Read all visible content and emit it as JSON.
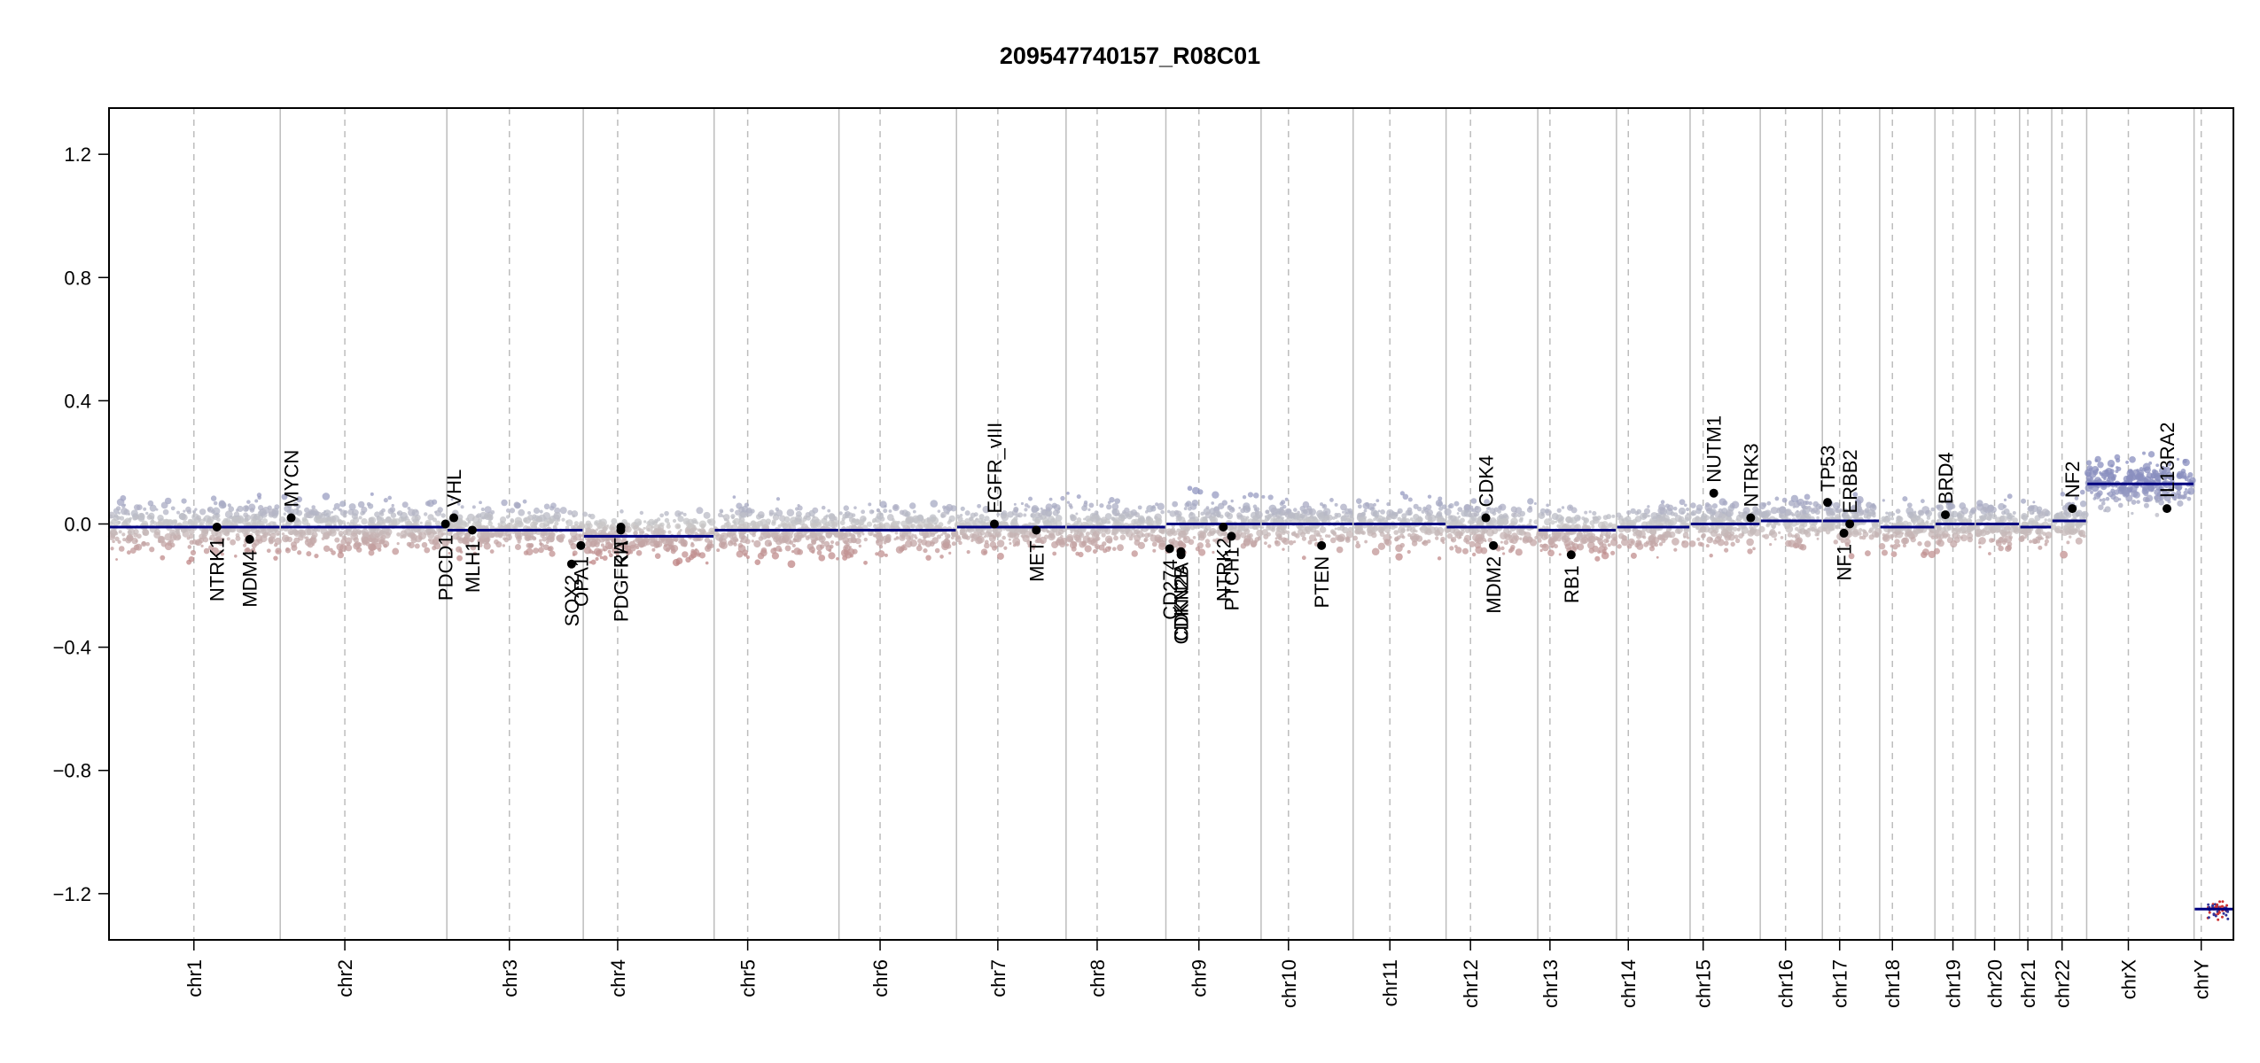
{
  "chart_data": {
    "type": "scatter",
    "title": "209547740157_R08C01",
    "xlabel": "",
    "ylabel": "",
    "ylim": [
      -1.35,
      1.35
    ],
    "y_ticks": [
      -1.2,
      -0.8,
      -0.4,
      0.0,
      0.4,
      0.8,
      1.2
    ],
    "y_tick_labels": [
      "−1.2",
      "−0.8",
      "−0.4",
      "0.0",
      "0.4",
      "0.8",
      "1.2"
    ],
    "grid": false,
    "colors": {
      "gain": "#8a8fbf",
      "loss": "#bf8585",
      "neutral": "#c8c8c8",
      "segment": "#000080",
      "frame": "#000000",
      "chr_line": "#bdbdbd"
    },
    "chromosomes": [
      {
        "name": "chr1",
        "start": 0.0,
        "end": 248.9,
        "centromere": 123.4,
        "segment": -0.01
      },
      {
        "name": "chr2",
        "start": 248.9,
        "end": 491.1,
        "centromere": 93.9,
        "segment": -0.01
      },
      {
        "name": "chr3",
        "start": 491.1,
        "end": 689.4,
        "centromere": 90.9,
        "segment": -0.02
      },
      {
        "name": "chr4",
        "start": 689.4,
        "end": 879.6,
        "centromere": 50.0,
        "segment": -0.04
      },
      {
        "name": "chr5",
        "start": 879.6,
        "end": 1061.1,
        "centromere": 48.8,
        "segment": -0.02
      },
      {
        "name": "chr6",
        "start": 1061.1,
        "end": 1231.9,
        "centromere": 59.8,
        "segment": -0.02
      },
      {
        "name": "chr7",
        "start": 1231.9,
        "end": 1391.2,
        "centromere": 60.1,
        "segment": -0.01
      },
      {
        "name": "chr8",
        "start": 1391.2,
        "end": 1536.3,
        "centromere": 45.2,
        "segment": -0.01
      },
      {
        "name": "chr9",
        "start": 1536.3,
        "end": 1674.7,
        "centromere": 48.0,
        "segment": 0.0
      },
      {
        "name": "chr10",
        "start": 1674.7,
        "end": 1808.5,
        "centromere": 39.8,
        "segment": 0.0
      },
      {
        "name": "chr11",
        "start": 1808.5,
        "end": 1943.6,
        "centromere": 53.4,
        "segment": 0.0
      },
      {
        "name": "chr12",
        "start": 1943.6,
        "end": 2076.9,
        "centromere": 35.5,
        "segment": -0.01
      },
      {
        "name": "chr13",
        "start": 2076.9,
        "end": 2191.3,
        "centromere": 17.7,
        "segment": -0.02
      },
      {
        "name": "chr14",
        "start": 2191.3,
        "end": 2298.3,
        "centromere": 17.2,
        "segment": -0.01
      },
      {
        "name": "chr15",
        "start": 2298.3,
        "end": 2400.3,
        "centromere": 19.0,
        "segment": 0.0
      },
      {
        "name": "chr16",
        "start": 2400.3,
        "end": 2490.6,
        "centromere": 36.8,
        "segment": 0.01
      },
      {
        "name": "chr17",
        "start": 2490.6,
        "end": 2573.9,
        "centromere": 25.1,
        "segment": 0.01
      },
      {
        "name": "chr18",
        "start": 2573.9,
        "end": 2654.2,
        "centromere": 18.5,
        "segment": -0.01
      },
      {
        "name": "chr19",
        "start": 2654.2,
        "end": 2712.8,
        "centromere": 26.2,
        "segment": 0.0
      },
      {
        "name": "chr20",
        "start": 2712.8,
        "end": 2777.3,
        "centromere": 28.1,
        "segment": 0.0
      },
      {
        "name": "chr21",
        "start": 2777.3,
        "end": 2824.0,
        "centromere": 12.0,
        "segment": -0.01
      },
      {
        "name": "chr22",
        "start": 2824.0,
        "end": 2874.8,
        "centromere": 15.0,
        "segment": 0.01
      },
      {
        "name": "chrX",
        "start": 2874.8,
        "end": 3030.9,
        "centromere": 60.6,
        "segment": 0.13
      },
      {
        "name": "chrY",
        "start": 3030.9,
        "end": 3088.1,
        "centromere": 10.4,
        "segment": -1.25
      }
    ],
    "genes": [
      {
        "name": "NTRK1",
        "x": 156.8,
        "y": -0.01,
        "label_side": "below"
      },
      {
        "name": "MDM4",
        "x": 204.5,
        "y": -0.05,
        "label_side": "below"
      },
      {
        "name": "MYCN",
        "x": 264.8,
        "y": 0.02,
        "label_side": "above"
      },
      {
        "name": "PDCD1",
        "x": 489.1,
        "y": 0.0,
        "label_side": "below"
      },
      {
        "name": "VHL",
        "x": 501.2,
        "y": 0.02,
        "label_side": "above"
      },
      {
        "name": "MLH1",
        "x": 528.1,
        "y": -0.02,
        "label_side": "below"
      },
      {
        "name": "SOX2",
        "x": 672.4,
        "y": -0.13,
        "label_side": "below"
      },
      {
        "name": "OPA1",
        "x": 685.9,
        "y": -0.07,
        "label_side": "below"
      },
      {
        "name": "PDGFRA",
        "x": 743.9,
        "y": -0.02,
        "label_side": "below"
      },
      {
        "name": "KIT",
        "x": 744.1,
        "y": -0.01,
        "label_side": "below"
      },
      {
        "name": "EGFR_vIII",
        "x": 1287.0,
        "y": 0.0,
        "label_side": "above"
      },
      {
        "name": "MET",
        "x": 1348.0,
        "y": -0.02,
        "label_side": "below"
      },
      {
        "name": "CDKN2A",
        "x": 1558.3,
        "y": -0.09,
        "label_side": "below"
      },
      {
        "name": "CDKN2B",
        "x": 1558.4,
        "y": -0.1,
        "label_side": "below"
      },
      {
        "name": "CD274",
        "x": 1541.8,
        "y": -0.08,
        "label_side": "below"
      },
      {
        "name": "PTCH1",
        "x": 1631.6,
        "y": -0.04,
        "label_side": "below"
      },
      {
        "name": "NTRK2",
        "x": 1619.8,
        "y": -0.01,
        "label_side": "below"
      },
      {
        "name": "PTEN",
        "x": 1762.6,
        "y": -0.07,
        "label_side": "below"
      },
      {
        "name": "CDK4",
        "x": 2001.4,
        "y": 0.02,
        "label_side": "above"
      },
      {
        "name": "MDM2",
        "x": 2012.4,
        "y": -0.07,
        "label_side": "below"
      },
      {
        "name": "RB1",
        "x": 2125.5,
        "y": -0.1,
        "label_side": "below"
      },
      {
        "name": "NUTM1",
        "x": 2332.7,
        "y": 0.1,
        "label_side": "above"
      },
      {
        "name": "NTRK3",
        "x": 2386.4,
        "y": 0.02,
        "label_side": "above"
      },
      {
        "name": "TP53",
        "x": 2498.1,
        "y": 0.07,
        "label_side": "above"
      },
      {
        "name": "NF1",
        "x": 2521.9,
        "y": -0.03,
        "label_side": "below"
      },
      {
        "name": "ERBB2",
        "x": 2530.4,
        "y": 0.0,
        "label_side": "above"
      },
      {
        "name": "BRD4",
        "x": 2669.4,
        "y": 0.03,
        "label_side": "above"
      },
      {
        "name": "NF2",
        "x": 2853.9,
        "y": 0.05,
        "label_side": "above"
      },
      {
        "name": "IL13RA2",
        "x": 2991.5,
        "y": 0.05,
        "label_side": "above"
      }
    ]
  }
}
